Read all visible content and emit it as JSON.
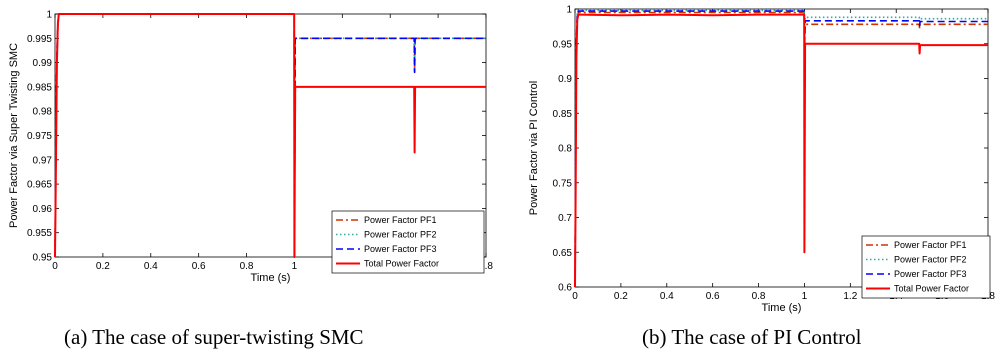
{
  "chart_data": [
    {
      "type": "line",
      "id": "a",
      "xlabel": "Time (s)",
      "ylabel": "Power Factor via Super Twisting SMC",
      "xlim": [
        0,
        1.8
      ],
      "ylim": [
        0.95,
        1.0
      ],
      "xticks": [
        "0",
        "0.2",
        "0.4",
        "0.6",
        "0.8",
        "1",
        "1.2",
        "1.4",
        "1.6",
        "1.8"
      ],
      "yticks": [
        "0.95",
        "0.955",
        "0.96",
        "0.965",
        "0.97",
        "0.975",
        "0.98",
        "0.985",
        "0.99",
        "0.995",
        "1"
      ],
      "legend": "bottom-right",
      "grid": false,
      "series": [
        {
          "name": "Power Factor PF1",
          "color": "#cc3300",
          "style": "dashdot",
          "x": [
            0,
            0.004,
            0.008,
            0.012,
            0.016,
            0.02,
            0.999,
            1.0,
            1.003,
            1.5,
            1.502,
            1.504,
            1.8
          ],
          "y": [
            0.95,
            0.975,
            0.99,
            0.998,
            1.0,
            1.0,
            1.0,
            0.95,
            0.995,
            0.995,
            0.988,
            0.995,
            0.995
          ]
        },
        {
          "name": "Power Factor PF2",
          "color": "#33aa99",
          "style": "dotted",
          "x": [
            0,
            0.004,
            0.008,
            0.012,
            0.016,
            0.02,
            0.999,
            1.0,
            1.003,
            1.5,
            1.502,
            1.504,
            1.8
          ],
          "y": [
            0.95,
            0.976,
            0.991,
            0.998,
            1.0,
            1.0,
            1.0,
            0.95,
            0.995,
            0.995,
            0.988,
            0.995,
            0.995
          ]
        },
        {
          "name": "Power Factor PF3",
          "color": "#0000ff",
          "style": "dashed",
          "x": [
            0,
            0.004,
            0.008,
            0.012,
            0.016,
            0.02,
            0.999,
            1.0,
            1.003,
            1.5,
            1.502,
            1.504,
            1.8
          ],
          "y": [
            0.95,
            0.977,
            0.992,
            0.998,
            1.0,
            1.0,
            1.0,
            0.95,
            0.995,
            0.995,
            0.988,
            0.995,
            0.995
          ]
        },
        {
          "name": "Total Power Factor",
          "color": "#ff0000",
          "style": "solid",
          "x": [
            0,
            0.004,
            0.008,
            0.012,
            0.016,
            0.02,
            0.999,
            1.0,
            1.003,
            1.5,
            1.502,
            1.504,
            1.8
          ],
          "y": [
            0.95,
            0.97,
            0.99,
            0.998,
            1.0,
            1.0,
            1.0,
            0.95,
            0.985,
            0.985,
            0.9715,
            0.985,
            0.985
          ]
        }
      ]
    },
    {
      "type": "line",
      "id": "b",
      "xlabel": "Time (s)",
      "ylabel": "Power Factor via PI Control",
      "xlim": [
        0,
        1.8
      ],
      "ylim": [
        0.6,
        1.0
      ],
      "xticks": [
        "0",
        "0.2",
        "0.4",
        "0.6",
        "0.8",
        "1",
        "1.2",
        "1.4",
        "1.6",
        "1.8"
      ],
      "yticks": [
        "0.6",
        "0.65",
        "0.7",
        "0.75",
        "0.8",
        "0.85",
        "0.9",
        "0.95",
        "1"
      ],
      "legend": "bottom-right",
      "grid": false,
      "series": [
        {
          "name": "Power Factor PF1",
          "color": "#cc3300",
          "style": "dashdot",
          "x": [
            0,
            0.003,
            0.006,
            0.01,
            0.015,
            0.02,
            0.2,
            0.4,
            0.6,
            0.8,
            0.999,
            1.0,
            1.003,
            1.2,
            1.5,
            1.502,
            1.504,
            1.8
          ],
          "y": [
            0.6,
            0.8,
            0.95,
            0.99,
            0.995,
            0.995,
            0.995,
            0.995,
            0.995,
            0.995,
            0.995,
            0.93,
            0.978,
            0.978,
            0.978,
            0.972,
            0.978,
            0.978
          ]
        },
        {
          "name": "Power Factor PF2",
          "color": "#33aa99",
          "style": "dotted",
          "x": [
            0,
            0.003,
            0.006,
            0.01,
            0.015,
            0.02,
            0.2,
            0.4,
            0.6,
            0.8,
            0.999,
            1.0,
            1.003,
            1.2,
            1.5,
            1.502,
            1.504,
            1.8
          ],
          "y": [
            0.6,
            0.82,
            0.96,
            0.995,
            0.998,
            0.998,
            0.998,
            0.998,
            0.998,
            0.998,
            0.998,
            0.93,
            0.988,
            0.988,
            0.988,
            0.982,
            0.986,
            0.986
          ]
        },
        {
          "name": "Power Factor PF3",
          "color": "#0000ff",
          "style": "dashed",
          "x": [
            0,
            0.003,
            0.006,
            0.01,
            0.015,
            0.02,
            0.2,
            0.4,
            0.6,
            0.8,
            0.999,
            1.0,
            1.003,
            1.2,
            1.5,
            1.502,
            1.504,
            1.8
          ],
          "y": [
            0.6,
            0.81,
            0.955,
            0.993,
            0.997,
            0.997,
            0.997,
            0.997,
            0.997,
            0.997,
            0.997,
            0.93,
            0.983,
            0.983,
            0.983,
            0.976,
            0.982,
            0.982
          ]
        },
        {
          "name": "Total Power Factor",
          "color": "#ff0000",
          "style": "solid",
          "x": [
            0,
            0.003,
            0.006,
            0.01,
            0.015,
            0.02,
            0.2,
            0.4,
            0.6,
            0.8,
            0.999,
            1.0,
            1.003,
            1.2,
            1.5,
            1.502,
            1.504,
            1.8
          ],
          "y": [
            0.6,
            0.75,
            0.93,
            0.985,
            0.992,
            0.992,
            0.991,
            0.992,
            0.991,
            0.992,
            0.992,
            0.65,
            0.95,
            0.95,
            0.95,
            0.936,
            0.948,
            0.948
          ]
        }
      ]
    }
  ],
  "captions": {
    "a": "(a) The case of super-twisting SMC",
    "b": "(b) The case of PI Control"
  }
}
